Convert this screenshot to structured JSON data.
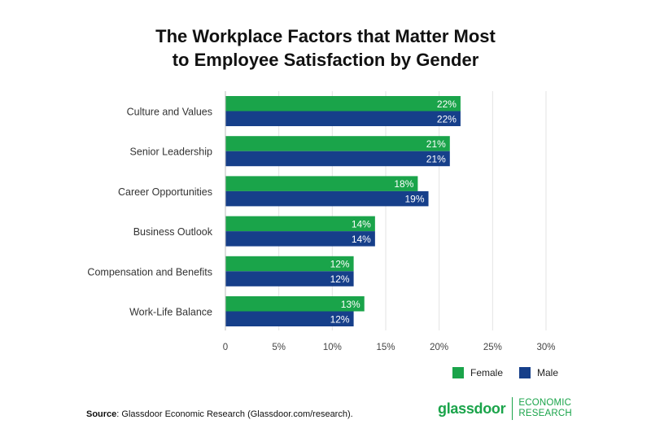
{
  "header": {
    "title_line1": "The Workplace Factors that Matter Most",
    "title_line2": "to Employee Satisfaction by Gender"
  },
  "colors": {
    "female": "#1aa44a",
    "male": "#163f8a",
    "grid": "#e3e3e3",
    "brand": "#1aa44a"
  },
  "chart_data": {
    "type": "bar",
    "orientation": "horizontal",
    "categories": [
      "Culture and Values",
      "Senior Leadership",
      "Career Opportunities",
      "Business Outlook",
      "Compensation and Benefits",
      "Work-Life Balance"
    ],
    "series": [
      {
        "name": "Female",
        "values": [
          22,
          21,
          18,
          14,
          12,
          13
        ],
        "labels": [
          "22%",
          "21%",
          "18%",
          "14%",
          "12%",
          "13%"
        ]
      },
      {
        "name": "Male",
        "values": [
          22,
          21,
          19,
          14,
          12,
          12
        ],
        "labels": [
          "22%",
          "21%",
          "19%",
          "14%",
          "12%",
          "12%"
        ]
      }
    ],
    "xlim": [
      0,
      30
    ],
    "x_ticks": [
      0,
      5,
      10,
      15,
      20,
      25,
      30
    ],
    "x_tick_labels": [
      "0",
      "5%",
      "10%",
      "15%",
      "20%",
      "25%",
      "30%"
    ],
    "grid": "vertical",
    "legend_position": "bottom-right"
  },
  "legend": {
    "female_label": "Female",
    "male_label": "Male"
  },
  "footer": {
    "source_label": "Source",
    "source_text": ": Glassdoor Economic Research (Glassdoor.com/research).",
    "logo_word": "glassdoor",
    "logo_sub_line1": "ECONOMIC",
    "logo_sub_line2": "RESEARCH"
  }
}
